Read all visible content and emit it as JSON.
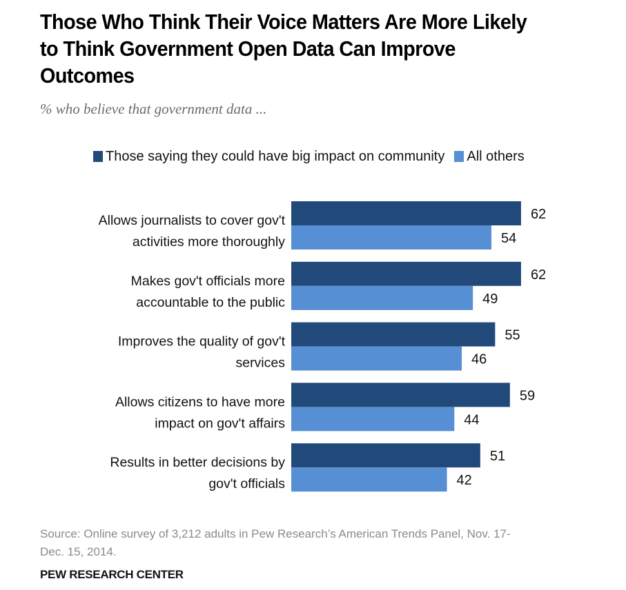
{
  "chart_data": {
    "type": "bar",
    "orientation": "horizontal",
    "title": "Those Who Think Their Voice Matters Are More Likely to Think Government Open Data Can Improve Outcomes",
    "title_lines": [
      "Those Who Think Their Voice Matters Are More Likely",
      "to Think Government Open Data Can Improve",
      "Outcomes"
    ],
    "subtitle": "% who believe that government data ...",
    "xlabel": "",
    "ylabel": "",
    "xlim": [
      0,
      100
    ],
    "grid": false,
    "legend_position": "top",
    "categories": [
      "Allows journalists to cover gov't activities more thoroughly",
      "Makes gov't officials more accountable to the public",
      "Improves the quality of gov't services",
      "Allows citizens to have more impact on gov't affairs",
      "Results in better decisions by gov't officials"
    ],
    "category_lines": [
      [
        "Allows journalists to cover gov't",
        "activities more thoroughly"
      ],
      [
        "Makes gov't officials more",
        "accountable to the public"
      ],
      [
        "Improves the quality of gov't",
        "services"
      ],
      [
        "Allows citizens to have more",
        "impact on gov't affairs"
      ],
      [
        "Results in better decisions by",
        "gov't officials"
      ]
    ],
    "series": [
      {
        "name": "Those saying they could have big impact on community",
        "color": "#21497A",
        "values": [
          62,
          62,
          55,
          59,
          51
        ]
      },
      {
        "name": "All others",
        "color": "#568FD3",
        "values": [
          54,
          49,
          46,
          44,
          42
        ]
      }
    ]
  },
  "source": "Source: Online survey of 3,212 adults in Pew Research’s American Trends Panel, Nov. 17-Dec. 15, 2014.",
  "source_lines": [
    "Source: Online survey of 3,212 adults in Pew Research’s American Trends Panel, Nov. 17-",
    "Dec. 15, 2014."
  ],
  "footer": "PEW RESEARCH CENTER"
}
